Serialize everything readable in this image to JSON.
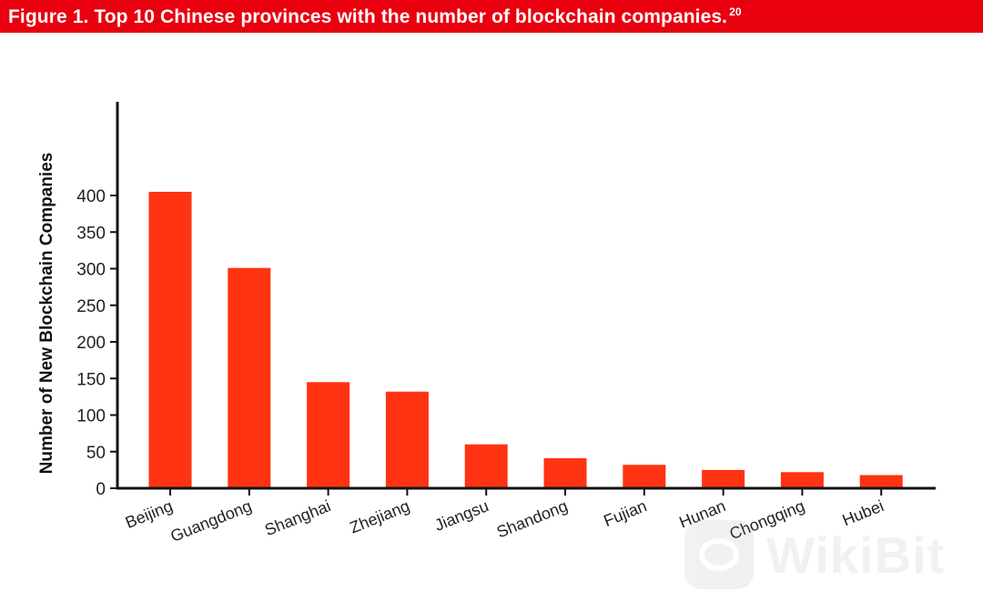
{
  "header": {
    "title": "Figure 1. Top 10 Chinese provinces with the number of blockchain companies.",
    "title_superscript": "20",
    "background_color": "#e8000f"
  },
  "watermark": {
    "text": "WikiBit"
  },
  "chart_data": {
    "type": "bar",
    "title": "",
    "xlabel": "",
    "ylabel": "Number of New Blockchain Companies",
    "categories": [
      "Beijing",
      "Guangdong",
      "Shanghai",
      "Zhejiang",
      "Jiangsu",
      "Shandong",
      "Fujian",
      "Hunan",
      "Chongqing",
      "Hubei"
    ],
    "values": [
      405,
      301,
      145,
      132,
      60,
      41,
      32,
      25,
      22,
      18
    ],
    "ylim": [
      0,
      420
    ],
    "yticks": [
      0,
      50,
      100,
      150,
      200,
      250,
      300,
      350,
      400
    ],
    "bar_color": "#ff3311",
    "grid": false,
    "legend": "none"
  }
}
